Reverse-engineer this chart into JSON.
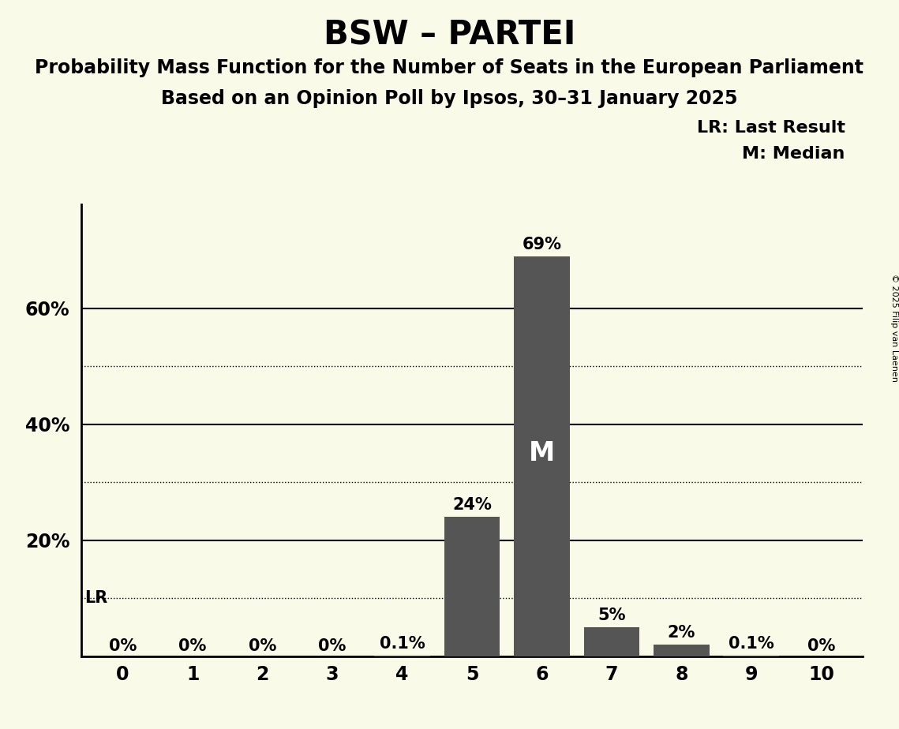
{
  "title": "BSW – PARTEI",
  "subtitle1": "Probability Mass Function for the Number of Seats in the European Parliament",
  "subtitle2": "Based on an Opinion Poll by Ipsos, 30–31 January 2025",
  "copyright": "© 2025 Filip van Laenen",
  "seats": [
    0,
    1,
    2,
    3,
    4,
    5,
    6,
    7,
    8,
    9,
    10
  ],
  "probabilities": [
    0.0,
    0.0,
    0.0,
    0.0,
    0.001,
    0.24,
    0.69,
    0.05,
    0.02,
    0.001,
    0.0
  ],
  "labels": [
    "0%",
    "0%",
    "0%",
    "0%",
    "0.1%",
    "24%",
    "69%",
    "5%",
    "2%",
    "0.1%",
    "0%"
  ],
  "bar_color": "#555555",
  "background_color": "#fafae8",
  "median_seat": 6,
  "lr_value": 0.1,
  "ytick_positions": [
    0.2,
    0.4,
    0.6
  ],
  "ytick_labels": [
    "20%",
    "40%",
    "60%"
  ],
  "ylim": [
    0,
    0.78
  ],
  "dotted_lines": [
    0.1,
    0.3,
    0.5
  ],
  "solid_lines": [
    0.2,
    0.4,
    0.6
  ],
  "title_fontsize": 30,
  "subtitle_fontsize": 17,
  "label_fontsize": 15,
  "axis_fontsize": 17,
  "legend_fontsize": 16
}
